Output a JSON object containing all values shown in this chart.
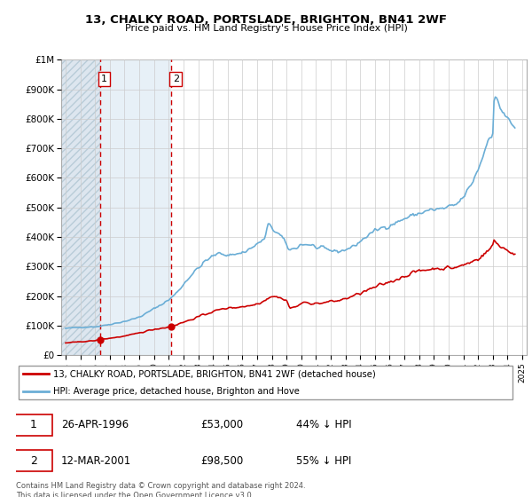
{
  "title1": "13, CHALKY ROAD, PORTSLADE, BRIGHTON, BN41 2WF",
  "title2": "Price paid vs. HM Land Registry's House Price Index (HPI)",
  "legend_line1": "13, CHALKY ROAD, PORTSLADE, BRIGHTON, BN41 2WF (detached house)",
  "legend_line2": "HPI: Average price, detached house, Brighton and Hove",
  "annotation_footnote": "Contains HM Land Registry data © Crown copyright and database right 2024.\nThis data is licensed under the Open Government Licence v3.0.",
  "sale1_date": "26-APR-1996",
  "sale1_price": "£53,000",
  "sale1_hpi": "44% ↓ HPI",
  "sale2_date": "12-MAR-2001",
  "sale2_price": "£98,500",
  "sale2_hpi": "55% ↓ HPI",
  "sale1_x": 1996.32,
  "sale1_y": 53000,
  "sale2_x": 2001.18,
  "sale2_y": 98500,
  "hpi_color": "#6baed6",
  "price_color": "#cc0000",
  "vline_color": "#cc0000",
  "ylim": [
    0,
    1000000
  ],
  "xlim_left": 1993.7,
  "xlim_right": 2025.3
}
